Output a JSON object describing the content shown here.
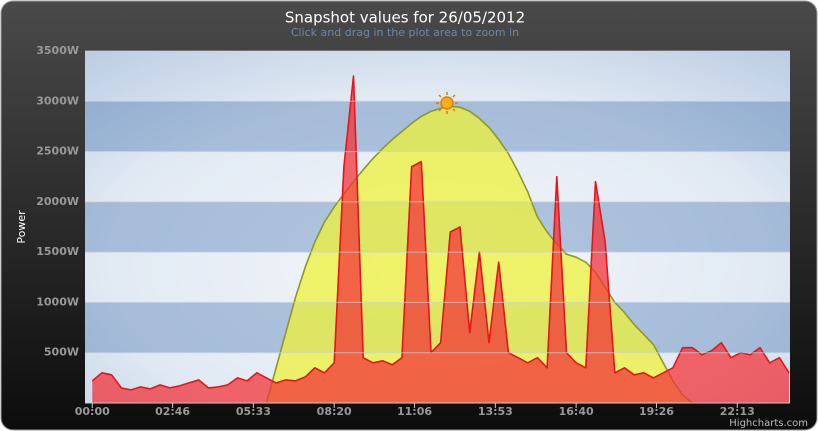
{
  "chart_data": {
    "type": "area",
    "title": "Snapshot values for 26/05/2012",
    "subtitle": "Click and drag in the plot area to zoom in",
    "y_label": "Power",
    "credits": "Highcharts.com",
    "x": [
      0,
      20,
      40,
      60,
      80,
      100,
      120,
      140,
      160,
      180,
      200,
      220,
      240,
      260,
      280,
      300,
      320,
      340,
      360,
      380,
      400,
      420,
      440,
      460,
      480,
      500,
      520,
      540,
      560,
      580,
      600,
      620,
      640,
      660,
      680,
      700,
      720,
      740,
      760,
      780,
      800,
      820,
      840,
      860,
      880,
      900,
      920,
      940,
      960,
      980,
      1000,
      1020,
      1040,
      1060,
      1080,
      1100,
      1120,
      1140,
      1160,
      1180,
      1200,
      1220,
      1240,
      1260,
      1280,
      1300,
      1320,
      1340,
      1360,
      1380,
      1400,
      1420,
      1440
    ],
    "xlim": [
      -15,
      1442
    ],
    "xticks": [
      {
        "value": 0,
        "label": "00:00"
      },
      {
        "value": 166,
        "label": "02:46"
      },
      {
        "value": 333,
        "label": "05:33"
      },
      {
        "value": 500,
        "label": "08:20"
      },
      {
        "value": 666,
        "label": "11:06"
      },
      {
        "value": 833,
        "label": "13:53"
      },
      {
        "value": 1000,
        "label": "16:40"
      },
      {
        "value": 1166,
        "label": "19:26"
      },
      {
        "value": 1333,
        "label": "22:13"
      }
    ],
    "ylim": [
      0,
      3500
    ],
    "yticks": [
      {
        "value": 500,
        "label": "500W"
      },
      {
        "value": 1000,
        "label": "1000W"
      },
      {
        "value": 1500,
        "label": "1500W"
      },
      {
        "value": 2000,
        "label": "2000W"
      },
      {
        "value": 2500,
        "label": "2500W"
      },
      {
        "value": 3000,
        "label": "3000W"
      },
      {
        "value": 3500,
        "label": "3500W"
      }
    ],
    "grid": true,
    "series": [
      {
        "color": "#8f9a1c",
        "fill": "#eef23a",
        "values": [
          0,
          0,
          0,
          0,
          0,
          0,
          0,
          0,
          0,
          0,
          0,
          0,
          0,
          0,
          0,
          0,
          0,
          0,
          0,
          350,
          700,
          1050,
          1350,
          1600,
          1800,
          1950,
          2080,
          2200,
          2320,
          2430,
          2530,
          2620,
          2700,
          2780,
          2850,
          2900,
          2930,
          2950,
          2940,
          2900,
          2830,
          2740,
          2620,
          2480,
          2300,
          2100,
          1850,
          1700,
          1580,
          1480,
          1450,
          1400,
          1300,
          1150,
          1000,
          900,
          780,
          680,
          580,
          400,
          220,
          80,
          0,
          0,
          0,
          0,
          0,
          0,
          0,
          0,
          0,
          0,
          0
        ]
      },
      {
        "color": "#e8141a",
        "fill": "#f2343a",
        "values": [
          220,
          300,
          280,
          150,
          130,
          160,
          140,
          180,
          150,
          170,
          200,
          230,
          150,
          160,
          180,
          250,
          220,
          300,
          250,
          200,
          230,
          220,
          260,
          350,
          300,
          400,
          2350,
          3250,
          450,
          400,
          420,
          380,
          450,
          2350,
          2400,
          500,
          600,
          1700,
          1750,
          700,
          1500,
          600,
          1400,
          500,
          450,
          400,
          450,
          350,
          2250,
          500,
          400,
          350,
          2200,
          1600,
          300,
          350,
          280,
          300,
          250,
          300,
          350,
          550,
          550,
          480,
          520,
          600,
          450,
          500,
          480,
          550,
          400,
          450,
          300
        ]
      }
    ]
  }
}
